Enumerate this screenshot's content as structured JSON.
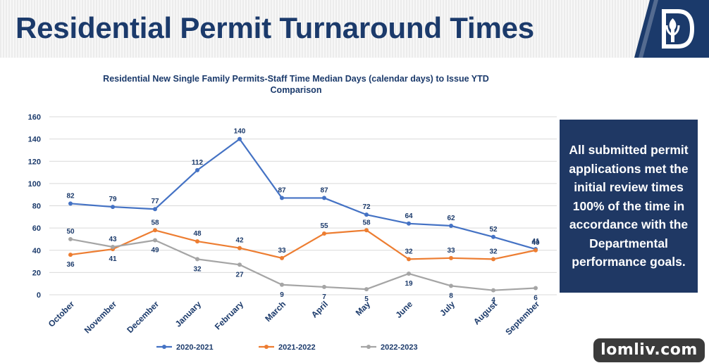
{
  "header": {
    "title": "Residential Permit Turnaround Times"
  },
  "callout": {
    "text": "All submitted permit applications met the initial review times 100% of the time in accordance with the Departmental performance goals."
  },
  "watermark": {
    "text": "lomliv.com"
  },
  "colors": {
    "title": "#1b3a6b",
    "callout_bg": "#1f3864",
    "series_2020": "#4472c4",
    "series_2021": "#ed7d31",
    "series_2022": "#a5a5a5",
    "axis_text": "#1b3a6b",
    "grid": "#d9d9d9"
  },
  "chart_data": {
    "type": "line",
    "title": "Residential New Single Family Permits-Staff Time Median Days (calendar days) to Issue YTD Comparison",
    "xlabel": "",
    "ylabel": "",
    "categories": [
      "October",
      "November",
      "December",
      "January",
      "February",
      "March",
      "April",
      "May",
      "June",
      "July",
      "August",
      "September"
    ],
    "ylim": [
      0,
      160
    ],
    "yticks": [
      0,
      20,
      40,
      60,
      80,
      100,
      120,
      140,
      160
    ],
    "grid": true,
    "legend_position": "bottom",
    "series": [
      {
        "name": "2020-2021",
        "color": "#4472c4",
        "values": [
          82,
          79,
          77,
          112,
          140,
          87,
          87,
          72,
          64,
          62,
          52,
          41
        ]
      },
      {
        "name": "2021-2022",
        "color": "#ed7d31",
        "values": [
          36,
          41,
          58,
          48,
          42,
          33,
          55,
          58,
          32,
          33,
          32,
          40
        ]
      },
      {
        "name": "2022-2023",
        "color": "#a5a5a5",
        "values": [
          50,
          43,
          49,
          32,
          27,
          9,
          7,
          5,
          19,
          8,
          4,
          6
        ]
      }
    ]
  }
}
